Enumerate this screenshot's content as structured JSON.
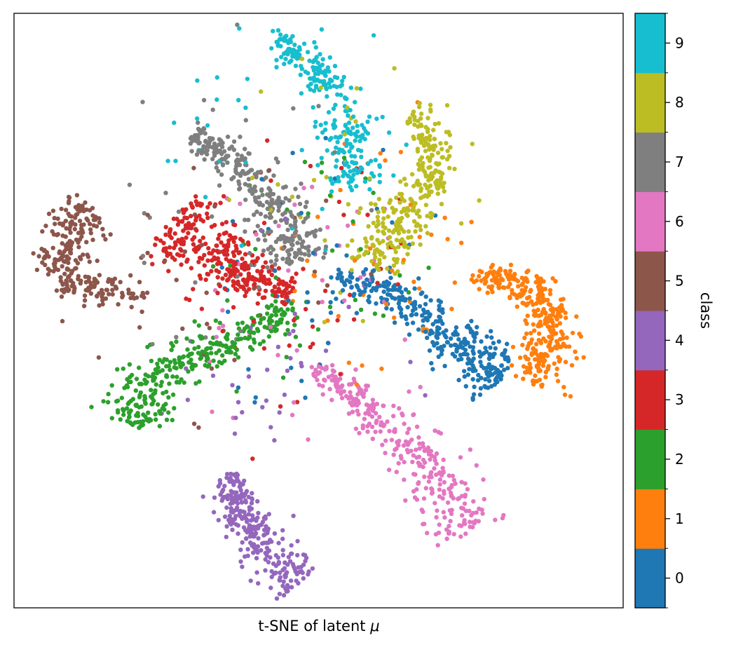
{
  "chart_data": {
    "type": "scatter",
    "title": "",
    "xlabel_text": "t-SNE of latent ",
    "xlabel_symbol": "μ",
    "ylabel": "",
    "xticks_shown": false,
    "yticks_shown": false,
    "grid": false,
    "legend": "none",
    "xlim": [
      -100,
      100
    ],
    "ylim": [
      -100,
      100
    ],
    "colorbar": {
      "label": "class",
      "ticks": [
        "0",
        "1",
        "2",
        "3",
        "4",
        "5",
        "6",
        "7",
        "8",
        "9"
      ],
      "placement": "right",
      "colors": [
        "#1f77b4",
        "#ff7f0e",
        "#2ca02c",
        "#d62728",
        "#9467bd",
        "#8c564b",
        "#e377c2",
        "#7f7f7f",
        "#bcbd22",
        "#17becf"
      ]
    },
    "series": [
      {
        "class": 0,
        "color": "#1f77b4",
        "arm": [
          [
            6,
            10
          ],
          [
            18,
            9
          ],
          [
            30,
            2
          ],
          [
            42,
            -7
          ],
          [
            52,
            -16
          ],
          [
            60,
            -23
          ]
        ],
        "width": 3.5,
        "count": 340
      },
      {
        "class": 1,
        "color": "#ff7f0e",
        "arm": [
          [
            50,
            11
          ],
          [
            60,
            11
          ],
          [
            68,
            8
          ],
          [
            74,
            2
          ],
          [
            76,
            -6
          ],
          [
            75,
            -15
          ],
          [
            71,
            -25
          ]
        ],
        "width": 3.5,
        "count": 330
      },
      {
        "class": 2,
        "color": "#2ca02c",
        "arm": [
          [
            -8,
            -1
          ],
          [
            -20,
            -6
          ],
          [
            -32,
            -12
          ],
          [
            -44,
            -17
          ],
          [
            -53,
            -22
          ],
          [
            -59,
            -30
          ],
          [
            -61,
            -38
          ]
        ],
        "width": 4,
        "count": 330
      },
      {
        "class": 3,
        "color": "#d62728",
        "arm": [
          [
            -8,
            6
          ],
          [
            -18,
            10
          ],
          [
            -28,
            14
          ],
          [
            -36,
            18
          ],
          [
            -41,
            26
          ],
          [
            -47,
            32
          ]
        ],
        "width": 5,
        "count": 320
      },
      {
        "class": 4,
        "color": "#9467bd",
        "arm": [
          [
            -28,
            -55
          ],
          [
            -28,
            -64
          ],
          [
            -23,
            -74
          ],
          [
            -16,
            -82
          ],
          [
            -7,
            -92
          ]
        ],
        "width": 3.5,
        "count": 280
      },
      {
        "class": 5,
        "color": "#8c564b",
        "arm": [
          [
            -56,
            5
          ],
          [
            -68,
            6
          ],
          [
            -78,
            8
          ],
          [
            -84,
            14
          ],
          [
            -86,
            22
          ],
          [
            -80,
            30
          ],
          [
            -75,
            35
          ]
        ],
        "width": 3.5,
        "count": 270
      },
      {
        "class": 6,
        "color": "#e377c2",
        "arm": [
          [
            -2,
            -20
          ],
          [
            8,
            -25
          ],
          [
            18,
            -33
          ],
          [
            28,
            -45
          ],
          [
            38,
            -55
          ],
          [
            46,
            -65
          ],
          [
            50,
            -75
          ]
        ],
        "width": 4,
        "count": 320
      },
      {
        "class": 7,
        "color": "#7f7f7f",
        "arm": [
          [
            -42,
            60
          ],
          [
            -34,
            54
          ],
          [
            -24,
            47
          ],
          [
            -16,
            37
          ],
          [
            -10,
            26
          ],
          [
            -8,
            16
          ]
        ],
        "width": 3.5,
        "count": 290
      },
      {
        "class": 8,
        "color": "#bcbd22",
        "arm": [
          [
            32,
            70
          ],
          [
            36,
            60
          ],
          [
            38,
            50
          ],
          [
            36,
            40
          ],
          [
            29,
            32
          ],
          [
            22,
            24
          ],
          [
            19,
            14
          ]
        ],
        "width": 3.5,
        "count": 290
      },
      {
        "class": 9,
        "color": "#17becf",
        "arm": [
          [
            -15,
            92
          ],
          [
            -7,
            86
          ],
          [
            2,
            78
          ],
          [
            8,
            66
          ],
          [
            10,
            52
          ],
          [
            12,
            40
          ]
        ],
        "width": 3.5,
        "count": 260
      }
    ]
  }
}
